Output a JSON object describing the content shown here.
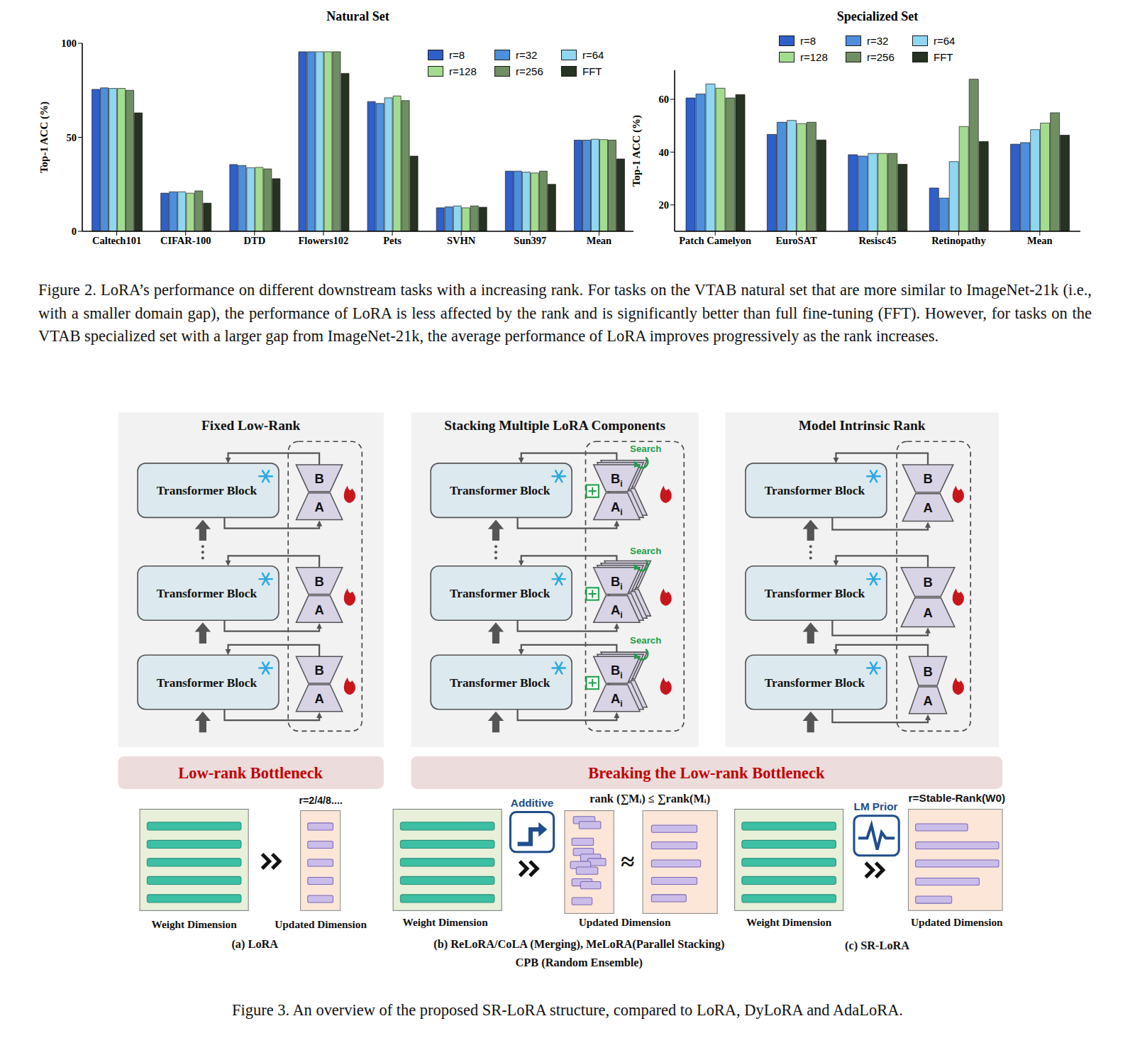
{
  "chart_data": [
    {
      "type": "bar",
      "title": "Natural Set",
      "y_label": "Top-1 ACC (%)",
      "categories": [
        "Caltech101",
        "CIFAR-100",
        "DTD",
        "Flowers102",
        "Pets",
        "SVHN",
        "Sun397",
        "Mean"
      ],
      "series": [
        {
          "name": "r=8",
          "color": "#2f5fc8",
          "values": [
            75.5,
            20.3,
            35.5,
            95.5,
            69,
            12.5,
            32,
            48.5
          ]
        },
        {
          "name": "r=32",
          "color": "#4d8fdc",
          "values": [
            76.3,
            21,
            35,
            95.5,
            68,
            13,
            32,
            48.5
          ]
        },
        {
          "name": "r=64",
          "color": "#8fd6f0",
          "values": [
            76,
            21,
            33.8,
            95.5,
            71,
            13.5,
            31.5,
            49
          ]
        },
        {
          "name": "r=128",
          "color": "#a3dc8e",
          "values": [
            76,
            20.3,
            34,
            95.5,
            72,
            12.5,
            31,
            48.8
          ]
        },
        {
          "name": "r=256",
          "color": "#6f8f63",
          "values": [
            75,
            21.5,
            33.2,
            95.5,
            69.5,
            13.5,
            32,
            48.5
          ]
        },
        {
          "name": "FFT",
          "color": "#263222",
          "values": [
            63,
            15,
            28,
            84,
            40,
            12.8,
            25,
            38.5
          ]
        }
      ],
      "ylim": [
        0,
        100
      ],
      "yticks": [
        0,
        50,
        100
      ],
      "legend": "upper right"
    },
    {
      "type": "bar",
      "title": "Specialized Set",
      "y_label": "Top-1 ACC (%)",
      "categories": [
        "Patch Camelyon",
        "EuroSAT",
        "Resisc45",
        "Retinopathy",
        "Mean"
      ],
      "series": [
        {
          "name": "r=8",
          "color": "#2f5fc8",
          "values": [
            60.5,
            46.7,
            39,
            26.4,
            43
          ]
        },
        {
          "name": "r=32",
          "color": "#4d8fdc",
          "values": [
            62,
            51.3,
            38.5,
            22.6,
            43.6
          ]
        },
        {
          "name": "r=64",
          "color": "#8fd6f0",
          "values": [
            65.8,
            52,
            39.5,
            36.4,
            48.5
          ]
        },
        {
          "name": "r=128",
          "color": "#a3dc8e",
          "values": [
            64.2,
            50.8,
            39.5,
            49.7,
            51
          ]
        },
        {
          "name": "r=256",
          "color": "#6f8f63",
          "values": [
            60.5,
            51.3,
            39.5,
            67.6,
            54.9
          ]
        },
        {
          "name": "FFT",
          "color": "#263222",
          "values": [
            61.8,
            44.6,
            35.4,
            44,
            46.4
          ]
        }
      ],
      "ylim": [
        10,
        71
      ],
      "yticks": [
        20,
        40,
        60
      ],
      "legend": "top"
    }
  ],
  "figure2_caption": "Figure 2. LoRA’s performance on different downstream tasks with a increasing rank. For tasks on the VTAB natural set that are more similar to ImageNet-21k (i.e., with a smaller domain gap), the performance of LoRA is less affected by the rank and is significantly better than full fine-tuning (FFT). However, for tasks on the VTAB specialized set with a larger gap from ImageNet-21k, the average performance of LoRA improves progressively as the rank increases.",
  "figure3": {
    "panels": [
      {
        "title": "Fixed Low-Rank"
      },
      {
        "title": "Stacking Multiple LoRA Components",
        "tag": "Search"
      },
      {
        "title": "Model Intrinsic Rank"
      }
    ],
    "block_label": "Transformer Block",
    "adapter_labels": [
      "B",
      "A"
    ],
    "stack_index": "i",
    "banners": [
      "Low-rank Bottleneck",
      "Breaking the Low-rank Bottleneck"
    ],
    "weight_label": "Weight Dimension",
    "update_label": "Updated Dimension",
    "methods": [
      {
        "rank_label": "r=2/4/8....",
        "caption": [
          "(a) LoRA"
        ]
      },
      {
        "icon_label": "Additive",
        "formula": "rank (∑Mᵢ) ≤ ∑rank(Mᵢ)",
        "approx": "≈",
        "caption": [
          "(b) ReLoRA/CoLA (Merging), MeLoRA(Parallel Stacking)",
          "CPB (Random Ensemble)"
        ]
      },
      {
        "icon_label": "LM Prior",
        "rank_label": "r=Stable-Rank(W0)",
        "caption": [
          "(c) SR-LoRA"
        ]
      }
    ],
    "caption": "Figure 3. An overview of the proposed SR-LoRA structure, compared to LoRA, DyLoRA and AdaLoRA."
  }
}
